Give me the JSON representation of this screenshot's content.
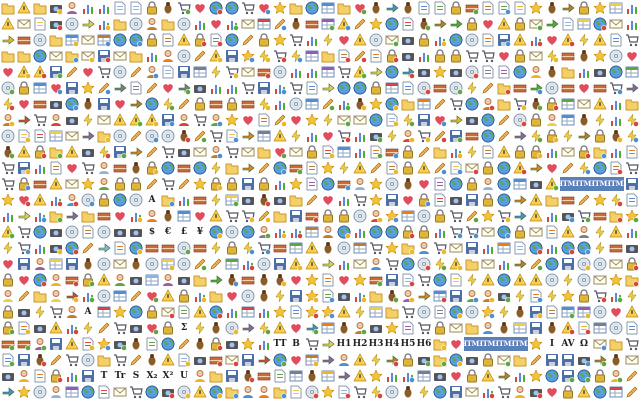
{
  "sheet": {
    "title": "",
    "columns": 40,
    "rows": 25,
    "palette": [
      "#4a8fd8",
      "#f0b429",
      "#5aa83e",
      "#d8453a",
      "#7a7f88",
      "#f2c94c",
      "#8ab4e8",
      "#c47a2c",
      "#9b59b6",
      "#e67e22"
    ],
    "icon_kinds": [
      "page-icon",
      "folder-icon",
      "user-icon",
      "table-icon",
      "arrow-icon",
      "star-icon",
      "warning-icon",
      "pencil-icon",
      "disk-icon",
      "chart-icon",
      "cd-icon",
      "heart-icon",
      "brick-icon",
      "world-icon",
      "lock-icon",
      "email-icon",
      "bug-icon",
      "camera-icon",
      "cart-icon",
      "lightning-icon"
    ],
    "text_icons": [
      {
        "row": 21,
        "col": 17,
        "label": "TT"
      },
      {
        "row": 21,
        "col": 18,
        "label": "B"
      },
      {
        "row": 21,
        "col": 21,
        "label": "H1"
      },
      {
        "row": 21,
        "col": 22,
        "label": "H2"
      },
      {
        "row": 21,
        "col": 23,
        "label": "H3"
      },
      {
        "row": 21,
        "col": 24,
        "label": "H4"
      },
      {
        "row": 21,
        "col": 25,
        "label": "H5"
      },
      {
        "row": 21,
        "col": 26,
        "label": "H6"
      },
      {
        "row": 21,
        "col": 34,
        "label": "I"
      },
      {
        "row": 21,
        "col": 35,
        "label": "AV"
      },
      {
        "row": 21,
        "col": 36,
        "label": "Ω"
      },
      {
        "row": 23,
        "col": 6,
        "label": "T"
      },
      {
        "row": 23,
        "col": 7,
        "label": "Tr"
      },
      {
        "row": 23,
        "col": 8,
        "label": "S"
      },
      {
        "row": 23,
        "col": 9,
        "label": "X₂"
      },
      {
        "row": 23,
        "col": 10,
        "label": "X²"
      },
      {
        "row": 23,
        "col": 11,
        "label": "U"
      },
      {
        "row": 20,
        "col": 11,
        "label": "Σ"
      },
      {
        "row": 14,
        "col": 9,
        "label": "$"
      },
      {
        "row": 14,
        "col": 10,
        "label": "€"
      },
      {
        "row": 14,
        "col": 11,
        "label": "£"
      },
      {
        "row": 14,
        "col": 12,
        "label": "¥"
      },
      {
        "row": 12,
        "col": 9,
        "label": "A"
      },
      {
        "row": 19,
        "col": 5,
        "label": "A"
      }
    ],
    "html_badges": [
      {
        "row": 11,
        "col": 35,
        "label": "HTML"
      },
      {
        "row": 11,
        "col": 36,
        "label": "HTML"
      },
      {
        "row": 11,
        "col": 37,
        "label": "HTML"
      },
      {
        "row": 11,
        "col": 38,
        "label": "HTML"
      },
      {
        "row": 21,
        "col": 29,
        "label": "HTML"
      },
      {
        "row": 21,
        "col": 30,
        "label": "HTML"
      },
      {
        "row": 21,
        "col": 31,
        "label": "HTML"
      },
      {
        "row": 21,
        "col": 32,
        "label": "HTML"
      }
    ]
  }
}
